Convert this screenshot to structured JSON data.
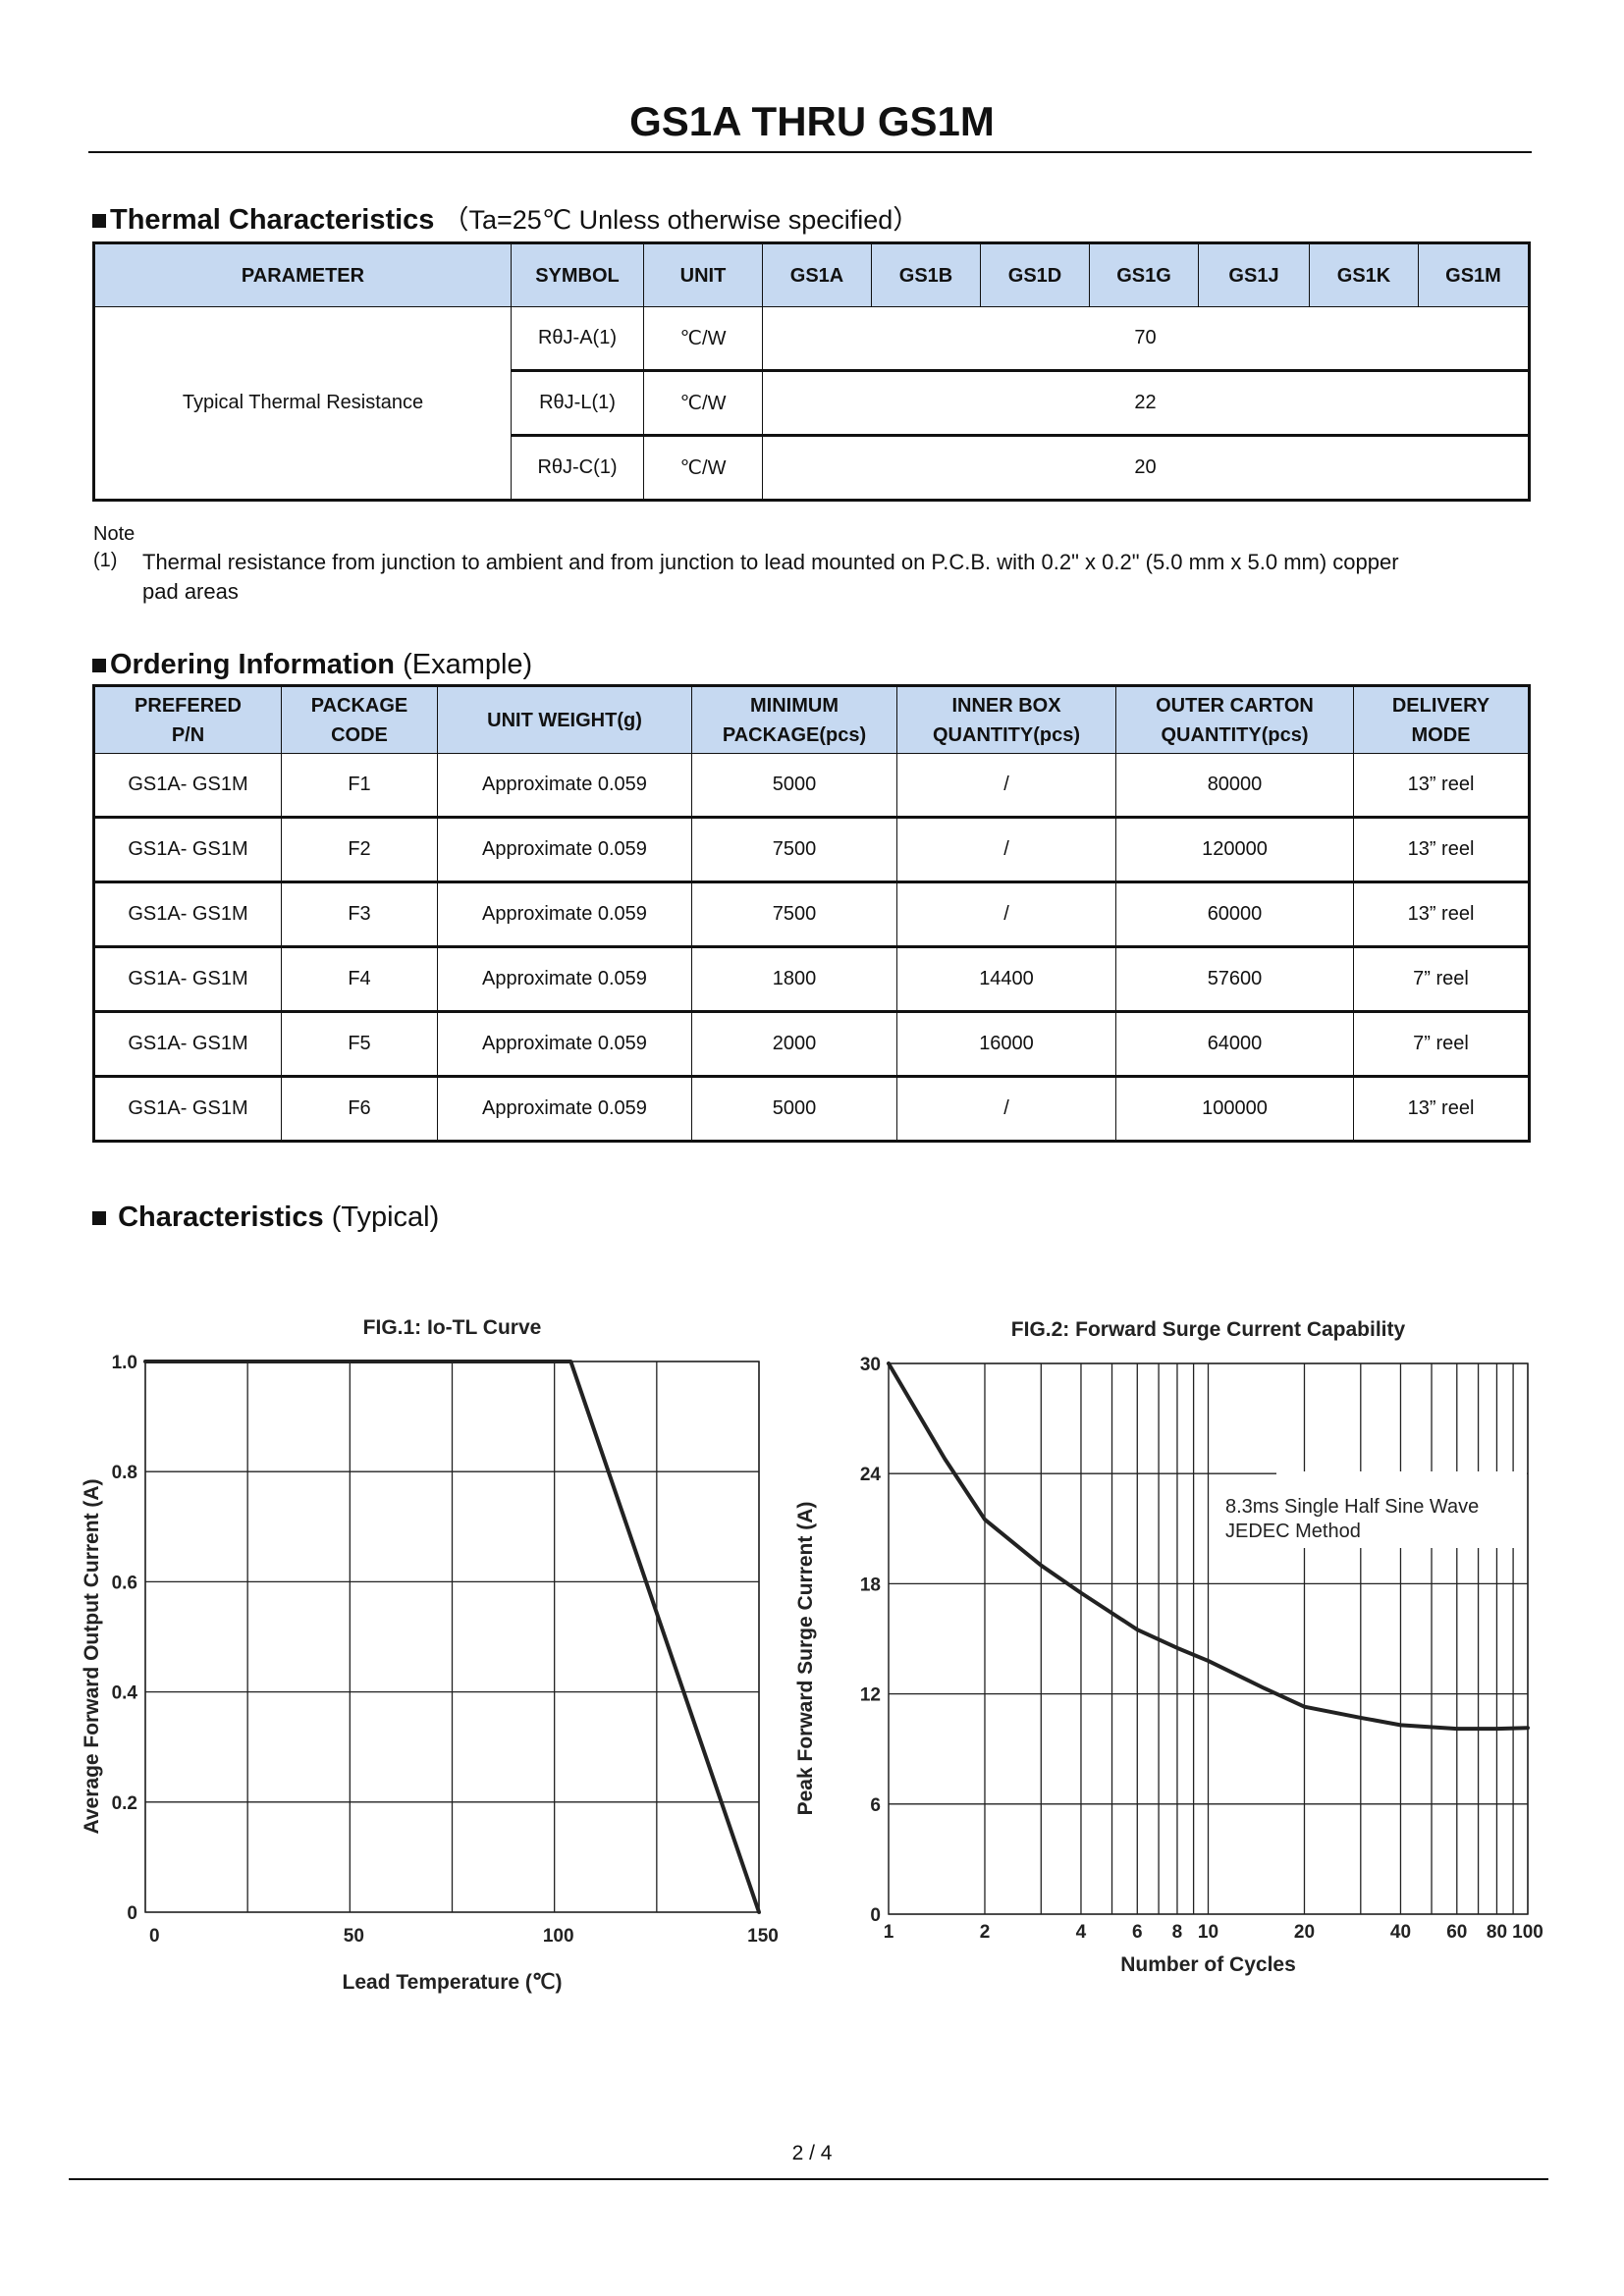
{
  "title": "GS1A THRU GS1M",
  "thermal": {
    "heading": "Thermal Characteristics",
    "condition": "（Ta=25℃ Unless otherwise specified）",
    "headers": [
      "PARAMETER",
      "SYMBOL",
      "UNIT",
      "GS1A",
      "GS1B",
      "GS1D",
      "GS1G",
      "GS1J",
      "GS1K",
      "GS1M"
    ],
    "parameter": "Typical Thermal Resistance",
    "rows": [
      {
        "symbol": "RθJ-A(1)",
        "unit": "℃/W",
        "value": "70"
      },
      {
        "symbol": "RθJ-L(1)",
        "unit": "℃/W",
        "value": "22"
      },
      {
        "symbol": "RθJ-C(1)",
        "unit": "℃/W",
        "value": "20"
      }
    ]
  },
  "note": {
    "label": "Note",
    "marker": "(1)",
    "text": "Thermal resistance from junction to ambient and from junction to lead mounted on P.C.B. with 0.2\" x 0.2\" (5.0 mm x 5.0 mm) copper",
    "text2": "pad areas"
  },
  "ordering": {
    "heading": "Ordering Information",
    "heading_suffix": "(Example)",
    "headers": [
      [
        "PREFERED",
        "P/N"
      ],
      [
        "PACKAGE",
        "CODE"
      ],
      [
        "UNIT WEIGHT(g)",
        ""
      ],
      [
        "MINIMUM",
        "PACKAGE(pcs)"
      ],
      [
        "INNER BOX",
        "QUANTITY(pcs)"
      ],
      [
        "OUTER CARTON",
        "QUANTITY(pcs)"
      ],
      [
        "DELIVERY",
        "MODE"
      ]
    ],
    "rows": [
      [
        "GS1A- GS1M",
        "F1",
        "Approximate 0.059",
        "5000",
        "/",
        "80000",
        "13” reel"
      ],
      [
        "GS1A- GS1M",
        "F2",
        "Approximate 0.059",
        "7500",
        "/",
        "120000",
        "13” reel"
      ],
      [
        "GS1A- GS1M",
        "F3",
        "Approximate 0.059",
        "7500",
        "/",
        "60000",
        "13” reel"
      ],
      [
        "GS1A- GS1M",
        "F4",
        "Approximate 0.059",
        "1800",
        "14400",
        "57600",
        "7” reel"
      ],
      [
        "GS1A- GS1M",
        "F5",
        "Approximate 0.059",
        "2000",
        "16000",
        "64000",
        "7” reel"
      ],
      [
        "GS1A- GS1M",
        "F6",
        "Approximate 0.059",
        "5000",
        "/",
        "100000",
        "13” reel"
      ]
    ]
  },
  "characteristics": {
    "heading": "Characteristics",
    "suffix": "(Typical)"
  },
  "chart_data": [
    {
      "type": "line",
      "title": "FIG.1: Io-TL Curve",
      "xlabel": "Lead Temperature (℃)",
      "ylabel": "Average Forward Output Current (A)",
      "xlim": [
        0,
        150
      ],
      "ylim": [
        0,
        1.0
      ],
      "xticks": [
        0,
        50,
        100,
        150
      ],
      "xtick_labels": [
        "0",
        "50",
        "100",
        "150"
      ],
      "xgrid": [
        0,
        25,
        50,
        75,
        100,
        125,
        150
      ],
      "yticks": [
        0,
        0.2,
        0.4,
        0.6,
        0.8,
        1.0
      ],
      "ytick_labels": [
        "0",
        "0.2",
        "0.4",
        "0.6",
        "0.8",
        "1.0"
      ],
      "grid": true,
      "x": [
        0,
        104,
        150
      ],
      "y": [
        1.0,
        1.0,
        0
      ]
    },
    {
      "type": "line",
      "title": "FIG.2: Forward Surge Current Capability",
      "xlabel": "Number of Cycles",
      "ylabel": "Peak Forward Surge Current (A)",
      "xscale": "log",
      "xlim": [
        1,
        100
      ],
      "ylim": [
        0,
        30
      ],
      "xticks": [
        1,
        2,
        4,
        6,
        8,
        10,
        20,
        40,
        60,
        80,
        100
      ],
      "xtick_labels": [
        "1",
        "2",
        "4",
        "6",
        "8",
        "10",
        "20",
        "40",
        "60",
        "80",
        "100"
      ],
      "xgrid": [
        2,
        3,
        4,
        5,
        6,
        7,
        8,
        9,
        10,
        20,
        30,
        40,
        50,
        60,
        70,
        80,
        90,
        100
      ],
      "yticks": [
        0,
        6,
        12,
        18,
        24,
        30
      ],
      "ytick_labels": [
        "0",
        "6",
        "12",
        "18",
        "24",
        "30"
      ],
      "grid": true,
      "annotation": [
        "8.3ms Single Half Sine Wave",
        "JEDEC Method"
      ],
      "x": [
        1,
        1.5,
        2,
        3,
        4,
        6,
        8,
        10,
        15,
        20,
        30,
        40,
        60,
        80,
        100
      ],
      "y": [
        30,
        24.8,
        21.5,
        19.0,
        17.5,
        15.5,
        14.5,
        13.8,
        12.3,
        11.3,
        10.7,
        10.3,
        10.1,
        10.1,
        10.15
      ]
    }
  ],
  "page_number": "2 / 4"
}
